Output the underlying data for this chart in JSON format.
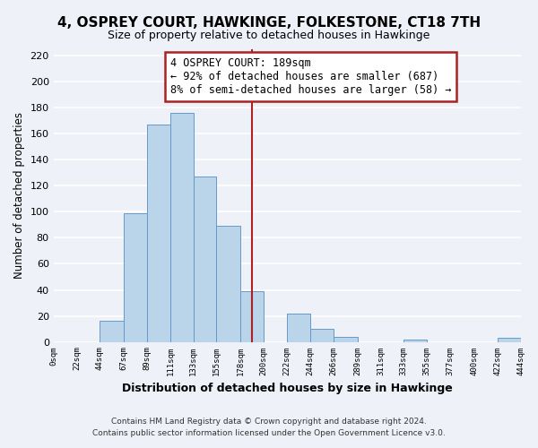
{
  "title": "4, OSPREY COURT, HAWKINGE, FOLKESTONE, CT18 7TH",
  "subtitle": "Size of property relative to detached houses in Hawkinge",
  "xlabel": "Distribution of detached houses by size in Hawkinge",
  "ylabel": "Number of detached properties",
  "bar_edges": [
    0,
    22,
    44,
    67,
    89,
    111,
    133,
    155,
    178,
    200,
    222,
    244,
    266,
    289,
    311,
    333,
    355,
    377,
    400,
    422,
    444
  ],
  "bar_heights": [
    0,
    0,
    16,
    99,
    167,
    176,
    127,
    89,
    39,
    0,
    22,
    10,
    4,
    0,
    0,
    2,
    0,
    0,
    0,
    3
  ],
  "bar_color": "#bad4ea",
  "bar_edge_color": "#6699cc",
  "property_line_x": 189,
  "property_line_color": "#aa2222",
  "annotation_line1": "4 OSPREY COURT: 189sqm",
  "annotation_line2": "← 92% of detached houses are smaller (687)",
  "annotation_line3": "8% of semi-detached houses are larger (58) →",
  "annotation_box_color": "#ffffff",
  "annotation_border_color": "#aa2222",
  "tick_labels": [
    "0sqm",
    "22sqm",
    "44sqm",
    "67sqm",
    "89sqm",
    "111sqm",
    "133sqm",
    "155sqm",
    "178sqm",
    "200sqm",
    "222sqm",
    "244sqm",
    "266sqm",
    "289sqm",
    "311sqm",
    "333sqm",
    "355sqm",
    "377sqm",
    "400sqm",
    "422sqm",
    "444sqm"
  ],
  "ylim": [
    0,
    225
  ],
  "yticks": [
    0,
    20,
    40,
    60,
    80,
    100,
    120,
    140,
    160,
    180,
    200,
    220
  ],
  "footnote1": "Contains HM Land Registry data © Crown copyright and database right 2024.",
  "footnote2": "Contains public sector information licensed under the Open Government Licence v3.0.",
  "background_color": "#eef2f8",
  "grid_color": "#ffffff"
}
